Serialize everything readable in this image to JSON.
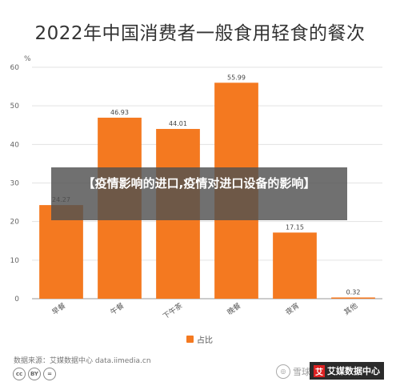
{
  "chart_data": {
    "type": "bar",
    "title": "2022年中国消费者一般食用轻食的餐次",
    "yunit": "%",
    "ylim": [
      0,
      60
    ],
    "yticks": [
      0,
      10,
      20,
      30,
      40,
      50,
      60
    ],
    "categories": [
      "早餐",
      "午餐",
      "下午茶",
      "晚餐",
      "夜宵",
      "其他"
    ],
    "series": [
      {
        "name": "占比",
        "values": [
          24.27,
          46.93,
          44.01,
          55.99,
          17.15,
          0.32
        ]
      }
    ],
    "data_labels": [
      "24.27",
      "46.93",
      "44.01",
      "55.99",
      "17.15",
      "0.32"
    ],
    "color": "#f47920",
    "grid": true,
    "legend": "bottom-center"
  },
  "footer": {
    "source": "数据来源：艾媒数据中心 data.iimedia.cn",
    "cc_labels": [
      "cc",
      "BY",
      "="
    ],
    "watermark_text": "雪球",
    "brand_logo": "艾",
    "brand_text": "艾媒数据中心"
  },
  "overlay": {
    "headline": "【疫情影响的进口,疫情对进口设备的影响】"
  }
}
